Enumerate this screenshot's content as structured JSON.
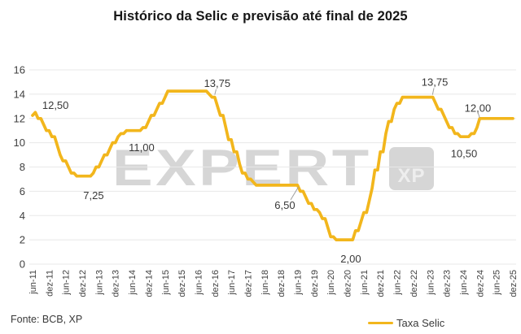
{
  "title": "Histórico da Selic e previsão até final de 2025",
  "footer": {
    "source": "Fonte: BCB, XP"
  },
  "watermark": {
    "text": "EXPERT",
    "logo": "XP"
  },
  "legend": {
    "label": "Taxa Selic"
  },
  "colors": {
    "line": "#F2B61C",
    "grid": "#E8E8E8",
    "axis_text": "#3F3F3F",
    "annotation_text": "#383838",
    "leader": "#9E9E9E",
    "watermark": "#D6D6D6",
    "title_text": "#161616"
  },
  "chart_data": {
    "type": "line",
    "title": "Histórico da Selic e previsão até final de 2025",
    "xlabel": "",
    "ylabel": "",
    "ylim": [
      0,
      16
    ],
    "yticks": [
      0,
      2,
      4,
      6,
      8,
      10,
      12,
      14,
      16
    ],
    "grid": "horizontal",
    "legend_position": "bottom",
    "legend_entries": [
      "Taxa Selic"
    ],
    "x_tick_labels": [
      "jun-11",
      "dez-11",
      "jun-12",
      "dez-12",
      "jun-13",
      "dez-13",
      "jun-14",
      "dez-14",
      "jun-15",
      "dez-15",
      "jun-16",
      "dez-16",
      "jun-17",
      "dez-17",
      "jun-18",
      "dez-18",
      "jun-19",
      "dez-19",
      "jun-20",
      "dez-20",
      "jun-21",
      "dez-21",
      "jun-22",
      "dez-22",
      "jun-23",
      "dez-23",
      "jun-24",
      "dez-24",
      "jun-25",
      "dez-25"
    ],
    "x_tick_every": 6,
    "series": [
      {
        "name": "Taxa Selic",
        "values": [
          12.25,
          12.5,
          12,
          12,
          11.5,
          11,
          11,
          10.5,
          10.5,
          9.75,
          9,
          8.5,
          8.5,
          8,
          7.5,
          7.5,
          7.25,
          7.25,
          7.25,
          7.25,
          7.25,
          7.25,
          7.5,
          8,
          8,
          8.5,
          9,
          9,
          9.5,
          10,
          10,
          10.5,
          10.75,
          10.75,
          11,
          11,
          11,
          11,
          11,
          11,
          11.25,
          11.25,
          11.75,
          12.25,
          12.25,
          12.75,
          13.25,
          13.25,
          13.75,
          14.25,
          14.25,
          14.25,
          14.25,
          14.25,
          14.25,
          14.25,
          14.25,
          14.25,
          14.25,
          14.25,
          14.25,
          14.25,
          14.25,
          14.25,
          14,
          13.75,
          13.75,
          13,
          12.25,
          12.25,
          11.25,
          10.25,
          10.25,
          9.25,
          9.25,
          8.25,
          7.5,
          7.5,
          7,
          7,
          6.75,
          6.5,
          6.5,
          6.5,
          6.5,
          6.5,
          6.5,
          6.5,
          6.5,
          6.5,
          6.5,
          6.5,
          6.5,
          6.5,
          6.5,
          6.5,
          6.5,
          6,
          6,
          5.5,
          5,
          5,
          4.5,
          4.5,
          4.25,
          3.75,
          3.75,
          3,
          2.25,
          2.25,
          2,
          2,
          2,
          2,
          2,
          2,
          2,
          2.75,
          2.75,
          3.5,
          4.25,
          4.25,
          5.25,
          6.25,
          7.75,
          7.75,
          9.25,
          9.25,
          10.75,
          11.75,
          11.75,
          12.75,
          13.25,
          13.25,
          13.75,
          13.75,
          13.75,
          13.75,
          13.75,
          13.75,
          13.75,
          13.75,
          13.75,
          13.75,
          13.75,
          13.75,
          13.25,
          12.75,
          12.75,
          12.25,
          11.75,
          11.25,
          11.25,
          10.75,
          10.75,
          10.5,
          10.5,
          10.5,
          10.5,
          10.75,
          10.75,
          11.25,
          12,
          12,
          12,
          12,
          12,
          12,
          12,
          12,
          12,
          12,
          12,
          12,
          12
        ]
      }
    ],
    "annotations": [
      {
        "text": "12,50",
        "i": 8.3,
        "v": 13.1
      },
      {
        "text": "7,25",
        "i": 22.1,
        "v": 5.65
      },
      {
        "text": "11,00",
        "i": 39.5,
        "v": 9.6
      },
      {
        "text": "13,75",
        "i": 66.9,
        "v": 14.9,
        "leader": [
          66.5,
          14.4,
          66.0,
          13.95
        ]
      },
      {
        "text": "6,50",
        "i": 91.4,
        "v": 4.85,
        "leader": [
          93.5,
          5.3,
          96.3,
          6.35
        ]
      },
      {
        "text": "2,00",
        "i": 115.3,
        "v": 0.42
      },
      {
        "text": "13,75",
        "i": 145.7,
        "v": 15.0,
        "leader": [
          145.4,
          14.5,
          144.9,
          13.95
        ]
      },
      {
        "text": "10,50",
        "i": 156.3,
        "v": 9.1
      },
      {
        "text": "12,00",
        "i": 161.3,
        "v": 12.85,
        "leader": [
          161.4,
          12.45,
          162.0,
          12.05
        ]
      }
    ]
  }
}
